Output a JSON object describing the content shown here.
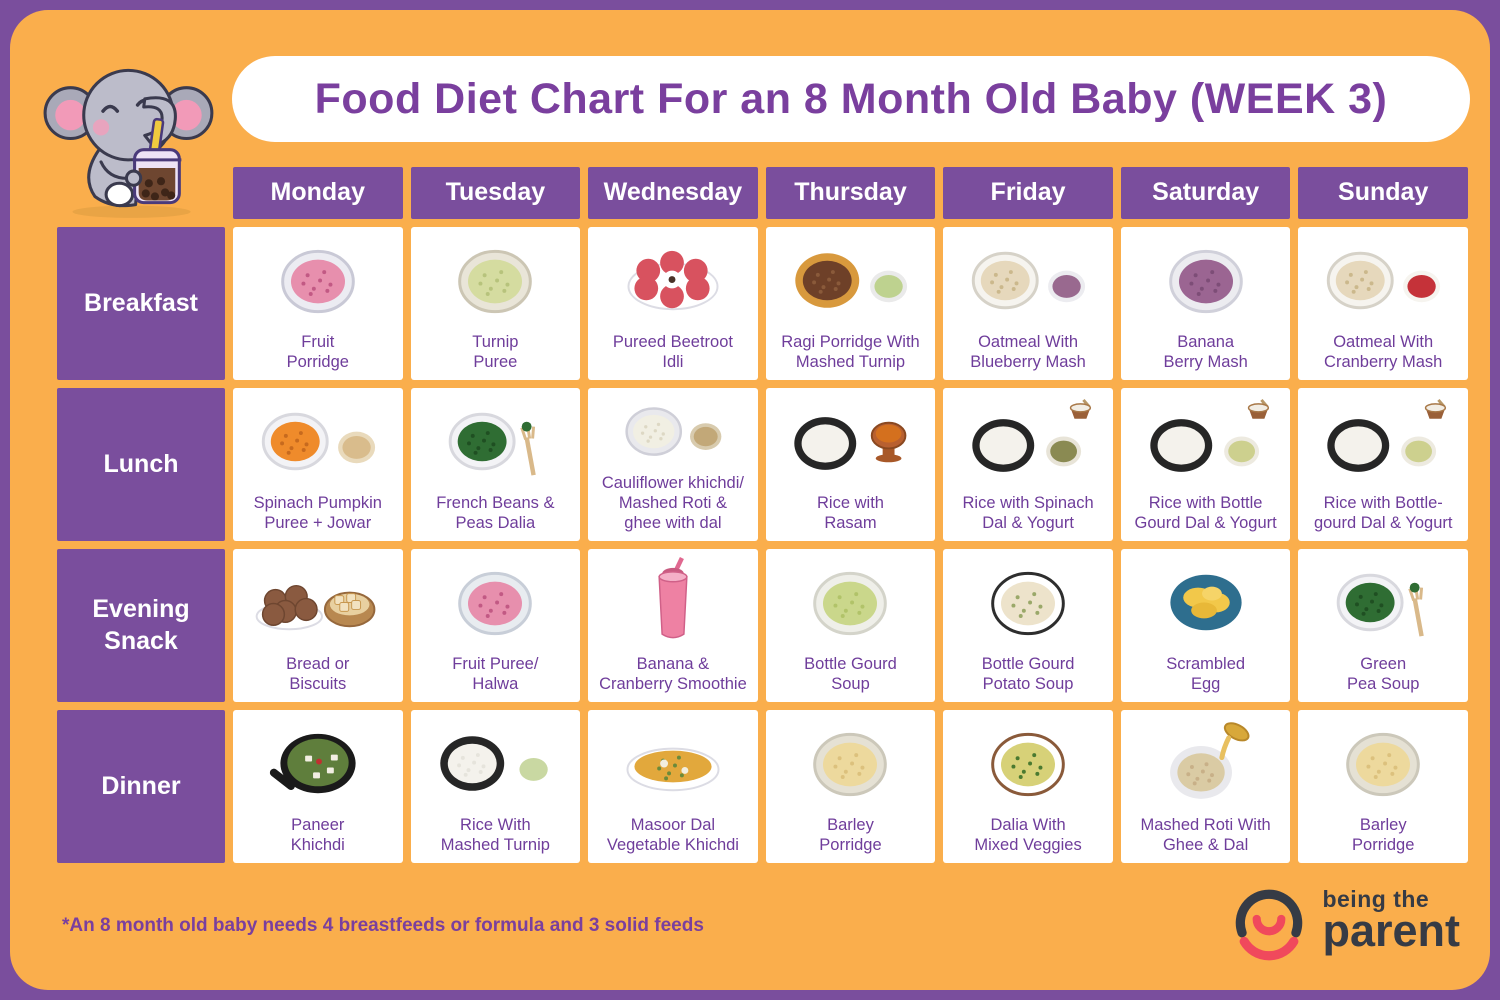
{
  "page": {
    "title": "Food Diet Chart For an 8 Month Old Baby (WEEK 3)",
    "footnote": "*An 8 month old baby needs 4 breastfeeds or formula and 3 solid feeds",
    "brand": {
      "line1": "being the",
      "line2": "parent"
    }
  },
  "colors": {
    "bg_purple": "#7A4E9D",
    "board_orange": "#FAAE4C",
    "header_purple": "#7A4E9D",
    "title_purple": "#7A3F9E",
    "label_purple": "#6F3D9B",
    "footnote_purple": "#7A3F9E",
    "logo_dark": "#363B45",
    "logo_pink": "#F0495C",
    "cell_white": "#FFFFFF"
  },
  "table": {
    "days": [
      "Monday",
      "Tuesday",
      "Wednesday",
      "Thursday",
      "Friday",
      "Saturday",
      "Sunday"
    ],
    "rows": [
      {
        "meal": "Breakfast",
        "cells": [
          {
            "label": "Fruit\nPorridge",
            "food": {
              "k": "bowl",
              "c": "#E78FAD",
              "b": "#ECECF2",
              "r": "#C9C9D6",
              "sp": "#C25984"
            }
          },
          {
            "label": "Turnip\nPuree",
            "food": {
              "k": "bowl",
              "c": "#D5DCA0",
              "b": "#E9E5D8",
              "r": "#CCC6B4",
              "sp": "#B7C37C"
            }
          },
          {
            "label": "Pureed Beetroot\nIdli",
            "food": {
              "k": "balls",
              "c": "#D8525F"
            }
          },
          {
            "label": "Ragi Porridge With\nMashed Turnip",
            "food": {
              "k": "bowl2",
              "c": "#6E4028",
              "b": "#D8993D",
              "c2": "#BED28F",
              "b2": "#EAEAEA",
              "sp": "#8A5A3A"
            }
          },
          {
            "label": "Oatmeal With\nBlueberry Mash",
            "food": {
              "k": "bowl2",
              "c": "#E6D8BC",
              "b": "#F6F4EF",
              "r": "#D6D2C8",
              "c2": "#99698F",
              "b2": "#ECECF0",
              "sp": "#CBB88C"
            }
          },
          {
            "label": "Banana\nBerry Mash",
            "food": {
              "k": "bowl",
              "c": "#9B6592",
              "b": "#ECECF0",
              "r": "#D0D0DA",
              "sp": "#7D4D77"
            }
          },
          {
            "label": "Oatmeal With\nCranberry Mash",
            "food": {
              "k": "bowl2",
              "c": "#E6D8BC",
              "b": "#F6F4EF",
              "r": "#D6D2C8",
              "c2": "#C53239",
              "b2": "#F6F4EF",
              "sp": "#CBB88C"
            }
          }
        ]
      },
      {
        "meal": "Lunch",
        "cells": [
          {
            "label": "Spinach Pumpkin\nPuree + Jowar",
            "food": {
              "k": "bowl2",
              "c": "#EF8B2B",
              "b": "#F3F3F6",
              "r": "#D8D8DE",
              "c2": "#D9BC8C",
              "b2": "#E9DABC",
              "sp": "#C76A1E"
            }
          },
          {
            "label": "French Beans &\nPeas Dalia",
            "food": {
              "k": "bowlfork",
              "c": "#2F6D33",
              "b": "#F3F3F6",
              "r": "#D8D8DE",
              "sp": "#1F4F22"
            }
          },
          {
            "label": "Cauliflower khichdi/\nMashed Roti &\nghee with dal",
            "food": {
              "k": "bowl2",
              "c": "#F1EFE3",
              "b": "#E9E9ED",
              "r": "#CFCFD8",
              "c2": "#C2A878",
              "b2": "#D8CBAE",
              "sp": "#DDD8C4"
            }
          },
          {
            "label": "Rice with\nRasam",
            "food": {
              "k": "rasam",
              "c": "#F4F2EC",
              "b": "#262626"
            }
          },
          {
            "label": "Rice with Spinach\nDal & Yogurt",
            "food": {
              "k": "bowl2top",
              "c": "#F4F2EC",
              "b": "#262626",
              "c2": "#8A8A52",
              "b2": "#E8E4D8"
            }
          },
          {
            "label": "Rice with Bottle\nGourd Dal & Yogurt",
            "food": {
              "k": "bowl2top",
              "c": "#F4F2EC",
              "b": "#262626",
              "c2": "#CDD08E",
              "b2": "#EDEAE0"
            }
          },
          {
            "label": "Rice with Bottle-\ngourd Dal & Yogurt",
            "food": {
              "k": "bowl2top",
              "c": "#F4F2EC",
              "b": "#262626",
              "c2": "#CDD08E",
              "b2": "#EDEAE0"
            }
          }
        ]
      },
      {
        "meal": "Evening\nSnack",
        "cells": [
          {
            "label": "Bread or\nBiscuits",
            "food": {
              "k": "biscuits"
            }
          },
          {
            "label": "Fruit Puree/\nHalwa",
            "food": {
              "k": "bowl",
              "c": "#E78FAD",
              "b": "#E8ECF0",
              "r": "#C8CED8",
              "sp": "#C25984"
            }
          },
          {
            "label": "Banana &\nCranberry Smoothie",
            "food": {
              "k": "glass",
              "c": "#EE81A3"
            }
          },
          {
            "label": "Bottle Gourd\nSoup",
            "food": {
              "k": "bowl",
              "c": "#CAD78B",
              "b": "#EFEFE9",
              "r": "#D4D4CA",
              "sp": "#B1C369"
            }
          },
          {
            "label": "Bottle Gourd\nPotato Soup",
            "food": {
              "k": "bowl",
              "c": "#EDE3CB",
              "b": "#FFFFFF",
              "r": "#2E2E2E",
              "sp": "#9AA869"
            }
          },
          {
            "label": "Scrambled\nEgg",
            "food": {
              "k": "eggs",
              "c": "#F2C84A",
              "b": "#2E6E8E"
            }
          },
          {
            "label": "Green\nPea Soup",
            "food": {
              "k": "bowlfork",
              "c": "#2F6D33",
              "b": "#F3F3F6",
              "r": "#D8D8DE",
              "sp": "#1F4F22"
            }
          }
        ]
      },
      {
        "meal": "Dinner",
        "cells": [
          {
            "label": "Paneer\nKhichdi",
            "food": {
              "k": "pan",
              "c": "#5F7E3C"
            }
          },
          {
            "label": "Rice With\nMashed Turnip",
            "food": {
              "k": "bowl2",
              "c": "#F4F2EC",
              "b": "#262626",
              "c2": "#C9D8A2",
              "b2": "#FFFFFF",
              "sp": "#E6E4DC"
            }
          },
          {
            "label": "Masoor Dal\nVegetable Khichdi",
            "food": {
              "k": "oval",
              "c": "#E2A83C",
              "sp": "#6A8A3A"
            }
          },
          {
            "label": "Barley\nPorridge",
            "food": {
              "k": "bowl",
              "c": "#EDD99D",
              "b": "#E5E1D4",
              "r": "#CCC8BA",
              "sp": "#DCC17D"
            }
          },
          {
            "label": "Dalia With\nMixed Veggies",
            "food": {
              "k": "bowl",
              "c": "#D7D178",
              "b": "#FFFFFF",
              "r": "#8A5A3A",
              "sp": "#4A7A30"
            }
          },
          {
            "label": "Mashed Roti With\nGhee & Dal",
            "food": {
              "k": "pour",
              "c": "#DACBA4",
              "b": "#E9E9ED"
            }
          },
          {
            "label": "Barley\nPorridge",
            "food": {
              "k": "bowl",
              "c": "#EDD99D",
              "b": "#E5E1D4",
              "r": "#CCC8BA",
              "sp": "#DCC17D"
            }
          }
        ]
      }
    ]
  },
  "chart_data": {
    "type": "table",
    "title": "Food Diet Chart For an 8 Month Old Baby (WEEK 3)",
    "columns": [
      "Monday",
      "Tuesday",
      "Wednesday",
      "Thursday",
      "Friday",
      "Saturday",
      "Sunday"
    ],
    "row_labels": [
      "Breakfast",
      "Lunch",
      "Evening Snack",
      "Dinner"
    ],
    "cells": [
      [
        "Fruit Porridge",
        "Turnip Puree",
        "Pureed Beetroot Idli",
        "Ragi Porridge With Mashed Turnip",
        "Oatmeal With Blueberry Mash",
        "Banana Berry Mash",
        "Oatmeal With Cranberry Mash"
      ],
      [
        "Spinach Pumpkin Puree + Jowar",
        "French Beans & Peas Dalia",
        "Cauliflower khichdi/ Mashed Roti & ghee with dal",
        "Rice with Rasam",
        "Rice with Spinach Dal & Yogurt",
        "Rice with Bottle Gourd Dal & Yogurt",
        "Rice with Bottle-gourd Dal & Yogurt"
      ],
      [
        "Bread or Biscuits",
        "Fruit Puree/ Halwa",
        "Banana & Cranberry Smoothie",
        "Bottle Gourd Soup",
        "Bottle Gourd Potato Soup",
        "Scrambled Egg",
        "Green Pea Soup"
      ],
      [
        "Paneer Khichdi",
        "Rice With Mashed Turnip",
        "Masoor Dal Vegetable Khichdi",
        "Barley Porridge",
        "Dalia With Mixed Veggies",
        "Mashed Roti With Ghee & Dal",
        "Barley Porridge"
      ]
    ],
    "footnote": "*An 8 month old baby needs 4 breastfeeds or formula and 3 solid feeds"
  }
}
